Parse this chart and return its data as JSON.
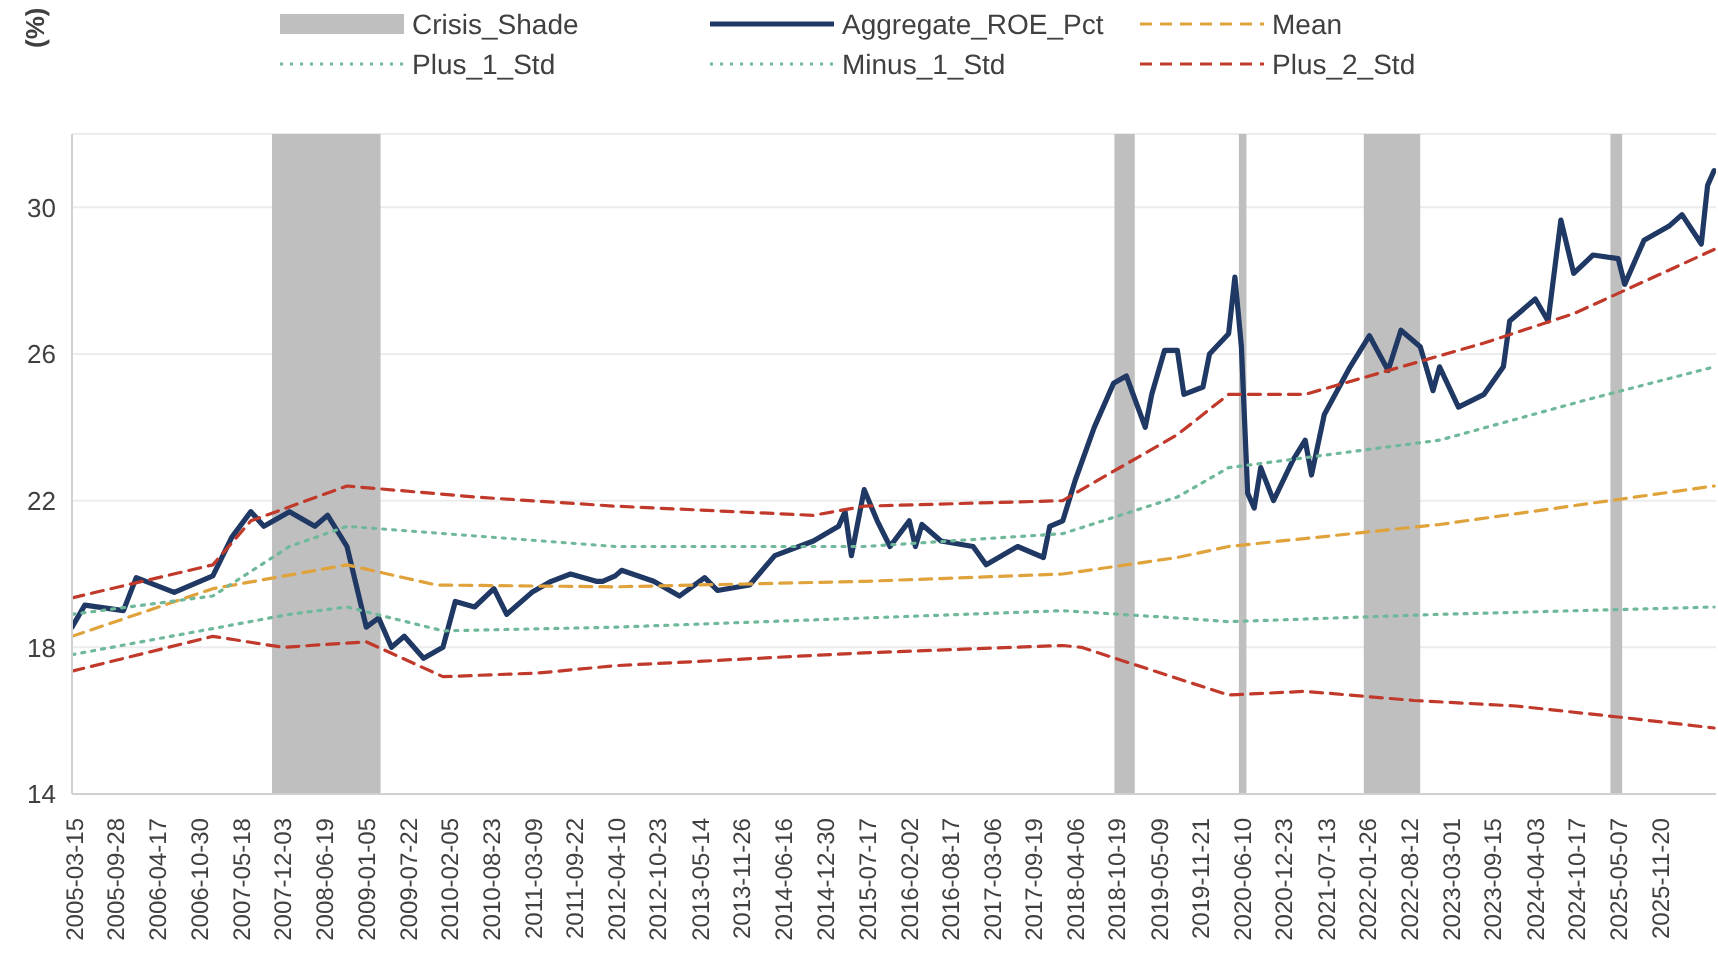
{
  "chart_data": {
    "type": "line",
    "ylabel": "(%)",
    "legend": "top",
    "grid": "y",
    "ylim": [
      14,
      32
    ],
    "yticks": [
      14,
      18,
      22,
      26,
      30
    ],
    "xlim": [
      "2005-03-01",
      "2026-08-10"
    ],
    "xticks": [
      "2005-03-15",
      "2005-09-28",
      "2006-04-17",
      "2006-10-30",
      "2007-05-18",
      "2007-12-03",
      "2008-06-19",
      "2009-01-05",
      "2009-07-22",
      "2010-02-05",
      "2010-08-23",
      "2011-03-09",
      "2011-09-22",
      "2012-04-10",
      "2012-10-23",
      "2013-05-14",
      "2013-11-26",
      "2014-06-16",
      "2014-12-30",
      "2015-07-17",
      "2016-02-02",
      "2016-08-17",
      "2017-03-06",
      "2017-09-19",
      "2018-04-06",
      "2018-10-19",
      "2019-05-09",
      "2019-11-21",
      "2020-06-10",
      "2020-12-23",
      "2021-07-13",
      "2022-01-26",
      "2022-08-12",
      "2023-03-01",
      "2023-09-15",
      "2024-04-03",
      "2024-10-17",
      "2025-05-07",
      "2025-11-20"
    ],
    "bands": [
      {
        "axis": "x",
        "from": "2007-10-10",
        "to": "2009-03-10",
        "label": "Crisis_Shade",
        "color": "#bfbfbf"
      },
      {
        "axis": "x",
        "from": "2018-10-05",
        "to": "2019-01-10",
        "color": "#bfbfbf"
      },
      {
        "axis": "x",
        "from": "2020-05-20",
        "to": "2020-06-25",
        "color": "#bfbfbf"
      },
      {
        "axis": "x",
        "from": "2022-01-05",
        "to": "2022-10-01",
        "color": "#bfbfbf"
      },
      {
        "axis": "x",
        "from": "2025-03-25",
        "to": "2025-05-20",
        "color": "#bfbfbf"
      }
    ],
    "series": [
      {
        "name": "Aggregate_ROE_Pct",
        "color": "#1f3864",
        "line_style": "solid",
        "x": [
          "2005-03",
          "2005-05",
          "2005-11",
          "2006-01",
          "2006-07",
          "2007-01",
          "2007-04",
          "2007-07",
          "2007-09",
          "2008-01",
          "2008-05",
          "2008-07",
          "2008-10",
          "2009-01",
          "2009-03",
          "2009-05",
          "2009-07",
          "2009-10",
          "2010-01",
          "2010-03",
          "2010-06",
          "2010-09",
          "2010-11",
          "2011-03",
          "2011-06",
          "2011-09",
          "2012-01",
          "2012-02",
          "2012-04",
          "2012-05",
          "2012-10",
          "2013-02",
          "2013-06",
          "2013-08",
          "2014-01",
          "2014-05",
          "2014-11",
          "2015-03",
          "2015-04",
          "2015-05",
          "2015-07",
          "2015-09",
          "2015-11",
          "2016-02",
          "2016-03",
          "2016-04",
          "2016-07",
          "2016-12",
          "2017-02",
          "2017-07",
          "2017-11",
          "2017-12",
          "2018-02",
          "2018-04",
          "2018-07",
          "2018-10",
          "2018-12",
          "2019-03",
          "2019-04",
          "2019-06",
          "2019-08",
          "2019-09",
          "2019-12",
          "2020-01",
          "2020-04",
          "2020-05",
          "2020-06",
          "2020-07",
          "2020-08",
          "2020-09",
          "2020-11",
          "2021-02",
          "2021-04",
          "2021-05",
          "2021-07",
          "2021-11",
          "2022-02",
          "2022-05",
          "2022-07",
          "2022-10",
          "2022-12",
          "2023-01",
          "2023-04",
          "2023-08",
          "2023-11",
          "2023-12",
          "2024-04",
          "2024-06",
          "2024-08",
          "2024-10",
          "2025-01",
          "2025-05",
          "2025-06",
          "2025-09",
          "2026-01",
          "2026-03",
          "2026-06",
          "2026-07",
          "2026-08"
        ],
        "values": [
          18.55,
          19.15,
          19.0,
          19.9,
          19.5,
          19.95,
          21.0,
          21.7,
          21.3,
          21.7,
          21.3,
          21.6,
          20.75,
          18.55,
          18.8,
          18.0,
          18.3,
          17.7,
          18.0,
          19.25,
          19.1,
          19.6,
          18.9,
          19.5,
          19.8,
          20.0,
          19.8,
          19.8,
          19.95,
          20.1,
          19.8,
          19.4,
          19.9,
          19.55,
          19.7,
          20.5,
          20.9,
          21.3,
          21.7,
          20.5,
          22.3,
          21.45,
          20.75,
          21.45,
          20.75,
          21.35,
          20.9,
          20.75,
          20.25,
          20.75,
          20.45,
          21.3,
          21.45,
          22.55,
          24.0,
          25.2,
          25.4,
          24.0,
          24.9,
          26.1,
          26.1,
          24.9,
          25.1,
          26.0,
          26.55,
          28.1,
          26.2,
          22.2,
          21.8,
          22.9,
          22.0,
          23.1,
          23.65,
          22.7,
          24.35,
          25.65,
          26.5,
          25.55,
          26.65,
          26.2,
          25.0,
          25.65,
          24.55,
          24.9,
          25.65,
          26.9,
          27.5,
          26.9,
          29.65,
          28.2,
          28.7,
          28.6,
          27.9,
          29.1,
          29.5,
          29.8,
          29.0,
          30.6,
          31.0
        ]
      },
      {
        "name": "Mean",
        "color": "#e0a33c",
        "line_style": "dashed",
        "x": [
          "2005-03",
          "2007-01",
          "2008-10",
          "2009-12",
          "2012-04",
          "2015-07",
          "2018-02",
          "2019-08",
          "2020-04",
          "2023-01",
          "2026-08"
        ],
        "values": [
          18.3,
          19.6,
          20.25,
          19.7,
          19.65,
          19.8,
          20.0,
          20.45,
          20.75,
          21.35,
          22.4
        ]
      },
      {
        "name": "Plus_1_Std",
        "color": "#6fb99a",
        "line_style": "dotted",
        "x": [
          "2005-03",
          "2007-01",
          "2008-01",
          "2008-10",
          "2012-04",
          "2015-07",
          "2018-02",
          "2019-08",
          "2020-04",
          "2023-01",
          "2024-12",
          "2026-08"
        ],
        "values": [
          18.9,
          19.4,
          20.75,
          21.3,
          20.75,
          20.75,
          21.1,
          22.1,
          22.9,
          23.65,
          24.75,
          25.65
        ]
      },
      {
        "name": "Minus_1_Std",
        "color": "#6fb99a",
        "line_style": "dotted",
        "x": [
          "2005-03",
          "2008-01",
          "2008-10",
          "2010-01",
          "2012-04",
          "2015-07",
          "2018-02",
          "2019-08",
          "2020-04",
          "2023-01",
          "2026-08"
        ],
        "values": [
          17.8,
          18.9,
          19.1,
          18.45,
          18.55,
          18.8,
          19.0,
          18.8,
          18.7,
          18.9,
          19.1
        ]
      },
      {
        "name": "Plus_2_Std",
        "color": "#c0392b",
        "line_style": "dashed",
        "x": [
          "2005-03",
          "2007-01",
          "2007-07",
          "2008-10",
          "2010-06",
          "2012-04",
          "2014-11",
          "2015-07",
          "2018-02",
          "2018-05",
          "2019-08",
          "2020-04",
          "2021-04",
          "2023-01",
          "2023-08",
          "2024-10",
          "2026-08"
        ],
        "values": [
          19.35,
          20.25,
          21.45,
          22.4,
          22.1,
          21.85,
          21.6,
          21.85,
          22.0,
          22.3,
          23.8,
          24.9,
          24.9,
          25.95,
          26.3,
          27.1,
          28.85
        ]
      },
      {
        "color": "#c0392b",
        "line_style": "dashed",
        "x": [
          "2005-03",
          "2007-01",
          "2007-12",
          "2009-01",
          "2010-01",
          "2011-04",
          "2012-04",
          "2015-07",
          "2018-02",
          "2018-05",
          "2019-08",
          "2020-04",
          "2021-04",
          "2022-09",
          "2024-01",
          "2025-05",
          "2026-08"
        ],
        "values": [
          17.35,
          18.3,
          18.0,
          18.15,
          17.2,
          17.3,
          17.5,
          17.85,
          18.05,
          18.0,
          17.15,
          16.7,
          16.8,
          16.55,
          16.4,
          16.1,
          15.8
        ]
      }
    ]
  }
}
